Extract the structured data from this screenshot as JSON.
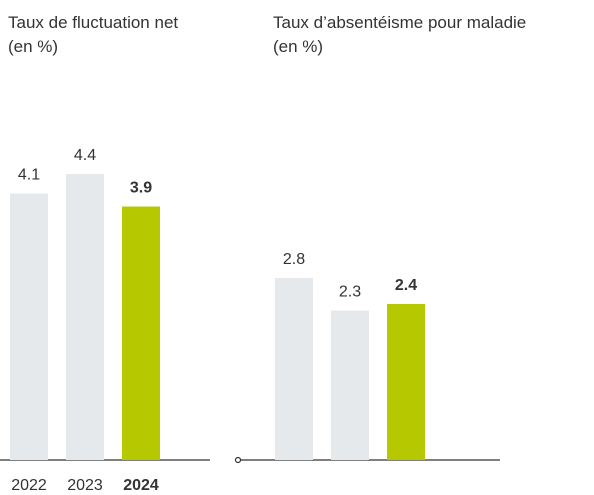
{
  "chart_data": [
    {
      "type": "bar",
      "title": "Taux de fluctuation net",
      "subtitle": "(en %)",
      "categories": [
        "2022",
        "2023",
        "2024"
      ],
      "values": [
        4.1,
        4.4,
        3.9
      ],
      "colors": [
        "#e6e9ec",
        "#e6e9ec",
        "#b5c800"
      ],
      "highlight": 2,
      "ylim": [
        0,
        5
      ]
    },
    {
      "type": "bar",
      "title": "Taux d’absentéisme pour maladie",
      "subtitle": "(en %)",
      "categories": [
        null,
        null,
        null
      ],
      "values": [
        2.8,
        2.3,
        2.4
      ],
      "colors": [
        "#e6e9ec",
        "#e6e9ec",
        "#b5c800"
      ],
      "highlight": 2,
      "ylim": [
        0,
        5
      ]
    }
  ]
}
